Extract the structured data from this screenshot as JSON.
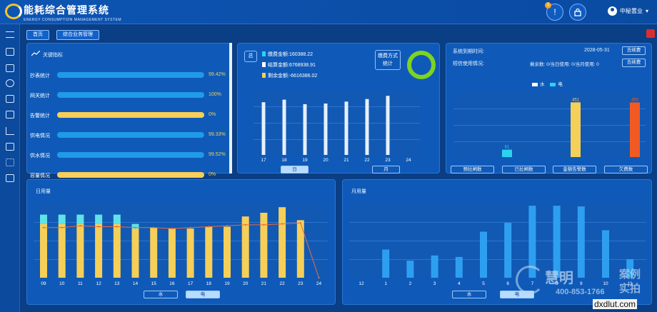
{
  "app": {
    "title_cn": "能耗综合管理系统",
    "title_en": "ENERGY CONSUMPTION MANAGEMENT SYSTEM",
    "alert_badge": "1",
    "user": "中秘置业"
  },
  "breadcrumb": [
    "首页",
    "综合业务管理"
  ],
  "kpi": {
    "title": "关键指标",
    "rows": [
      {
        "label": "抄表统计",
        "value": "99.42%",
        "pct": 99.42,
        "color": "#1f9be8"
      },
      {
        "label": "网关统计",
        "value": "100%",
        "pct": 100,
        "color": "#1f9be8"
      },
      {
        "label": "告警统计",
        "value": "0%",
        "pct": 100,
        "color": "#f5cf58"
      },
      {
        "label": "供电情况",
        "value": "99.33%",
        "pct": 99.33,
        "color": "#1f9be8"
      },
      {
        "label": "供水情况",
        "value": "99.52%",
        "pct": 99.52,
        "color": "#1f9be8"
      },
      {
        "label": "容量情况",
        "value": "0%",
        "pct": 100,
        "color": "#f5cf58"
      }
    ]
  },
  "fees": {
    "total_label": "总",
    "lines": [
      {
        "text": "缴费金额:160388.22",
        "color": "#2cd3f0"
      },
      {
        "text": "结算金额:6768938.91",
        "color": "#ffffff"
      },
      {
        "text": "剩余金额:-6616386.02",
        "color": "#f5cf58"
      }
    ],
    "method_label": "缴费方式统计",
    "ring_color": "#7ed321",
    "tab_day": "日",
    "tab_month": "月"
  },
  "alerts": {
    "expiry_label": "系统到期时间:",
    "expiry_date": "2028-05-31",
    "renew_label": "去续费",
    "sms_label": "短信使用情况:",
    "sms_stats": "剩余数: 0/当日使用: 0/当月使用: 0",
    "renew_label2": "去续费",
    "legend_water": "水",
    "legend_elec": "电",
    "buttons": [
      "预拉闸数",
      "已拉闸数",
      "金额告警数",
      "欠费数"
    ]
  },
  "daily": {
    "title": "日用量",
    "tab_water": "水",
    "tab_elec": "电"
  },
  "monthly": {
    "title": "月用量",
    "tab_water": "水",
    "tab_elec": "电"
  },
  "watermark": {
    "brand": "慧明",
    "suffix1": "案例",
    "suffix2": "实拍",
    "phone": "400-853-1766",
    "site": "dxdlut.com"
  },
  "chart_data": [
    {
      "type": "bar",
      "title": "",
      "categories": [
        "17",
        "18",
        "19",
        "20",
        "21",
        "22",
        "23",
        "24"
      ],
      "values": [
        82,
        86,
        79,
        80,
        83,
        87,
        92,
        0
      ],
      "ylim": [
        0,
        100
      ]
    },
    {
      "type": "bar",
      "categories": [
        "预拉闸数",
        "已拉闸数",
        "金额告警数",
        "欠费数"
      ],
      "series": [
        {
          "name": "水",
          "values": [
            0,
            0,
            451,
            0
          ]
        },
        {
          "name": "电",
          "values": [
            0,
            61,
            0,
            450
          ]
        }
      ],
      "ylim": [
        0,
        500
      ]
    },
    {
      "type": "bar",
      "title": "日用量",
      "categories": [
        "09",
        "10",
        "11",
        "12",
        "13",
        "14",
        "15",
        "16",
        "17",
        "18",
        "19",
        "20",
        "21",
        "22",
        "23",
        "24"
      ],
      "series": [
        {
          "name": "电",
          "values": [
            58,
            58,
            58,
            58,
            58,
            53,
            54,
            53,
            53,
            55,
            55,
            66,
            70,
            76,
            62,
            0
          ]
        },
        {
          "name": "水",
          "values": [
            10,
            10,
            10,
            10,
            10,
            5,
            0,
            0,
            0,
            0,
            0,
            0,
            0,
            0,
            0,
            0
          ]
        },
        {
          "name": "line",
          "values": [
            54,
            54,
            56,
            55,
            55,
            54,
            54,
            53,
            54,
            55,
            56,
            57,
            57,
            58,
            59,
            0
          ]
        }
      ],
      "ylim": [
        0,
        80
      ]
    },
    {
      "type": "bar",
      "title": "月用量",
      "categories": [
        "12",
        "1",
        "2",
        "3",
        "4",
        "5",
        "6",
        "7",
        "8",
        "9",
        "10",
        "11"
      ],
      "values": [
        0,
        38,
        23,
        30,
        28,
        62,
        74,
        97,
        97,
        96,
        64,
        25
      ],
      "ylim": [
        0,
        100
      ]
    }
  ]
}
